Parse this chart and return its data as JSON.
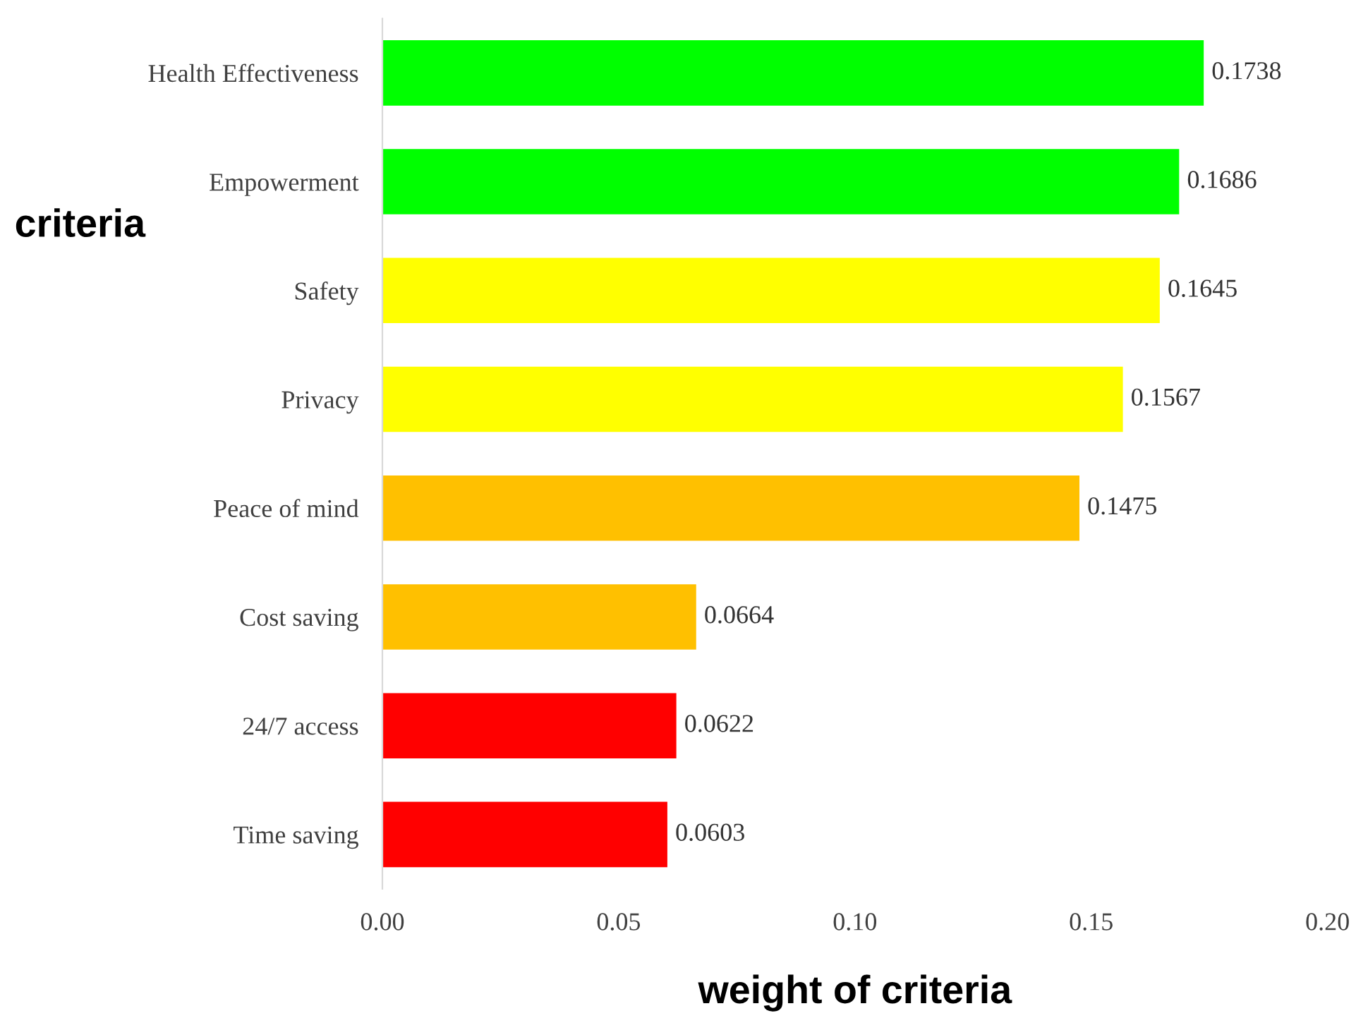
{
  "chart_data": {
    "type": "bar",
    "orientation": "horizontal",
    "xlabel": "weight of criteria",
    "ylabel": "criteria",
    "categories": [
      "Health Effectiveness",
      "Empowerment",
      "Safety",
      "Privacy",
      "Peace of mind",
      "Cost saving",
      "24/7 access",
      "Time saving"
    ],
    "values": [
      0.1738,
      0.1686,
      0.1645,
      0.1567,
      0.1475,
      0.0664,
      0.0622,
      0.0603
    ],
    "colors": [
      "#00ff00",
      "#00ff00",
      "#ffff00",
      "#ffff00",
      "#ffc000",
      "#ffc000",
      "#ff0000",
      "#ff0000"
    ],
    "xlim": [
      0,
      0.2
    ],
    "xticks": [
      {
        "value": 0,
        "label": "0.00"
      },
      {
        "value": 0.05,
        "label": "0.05"
      },
      {
        "value": 0.1,
        "label": "0.10"
      },
      {
        "value": 0.15,
        "label": "0.15"
      },
      {
        "value": 0.2,
        "label": "0.20"
      }
    ],
    "data_labels": true,
    "grid": false,
    "legend": false
  }
}
